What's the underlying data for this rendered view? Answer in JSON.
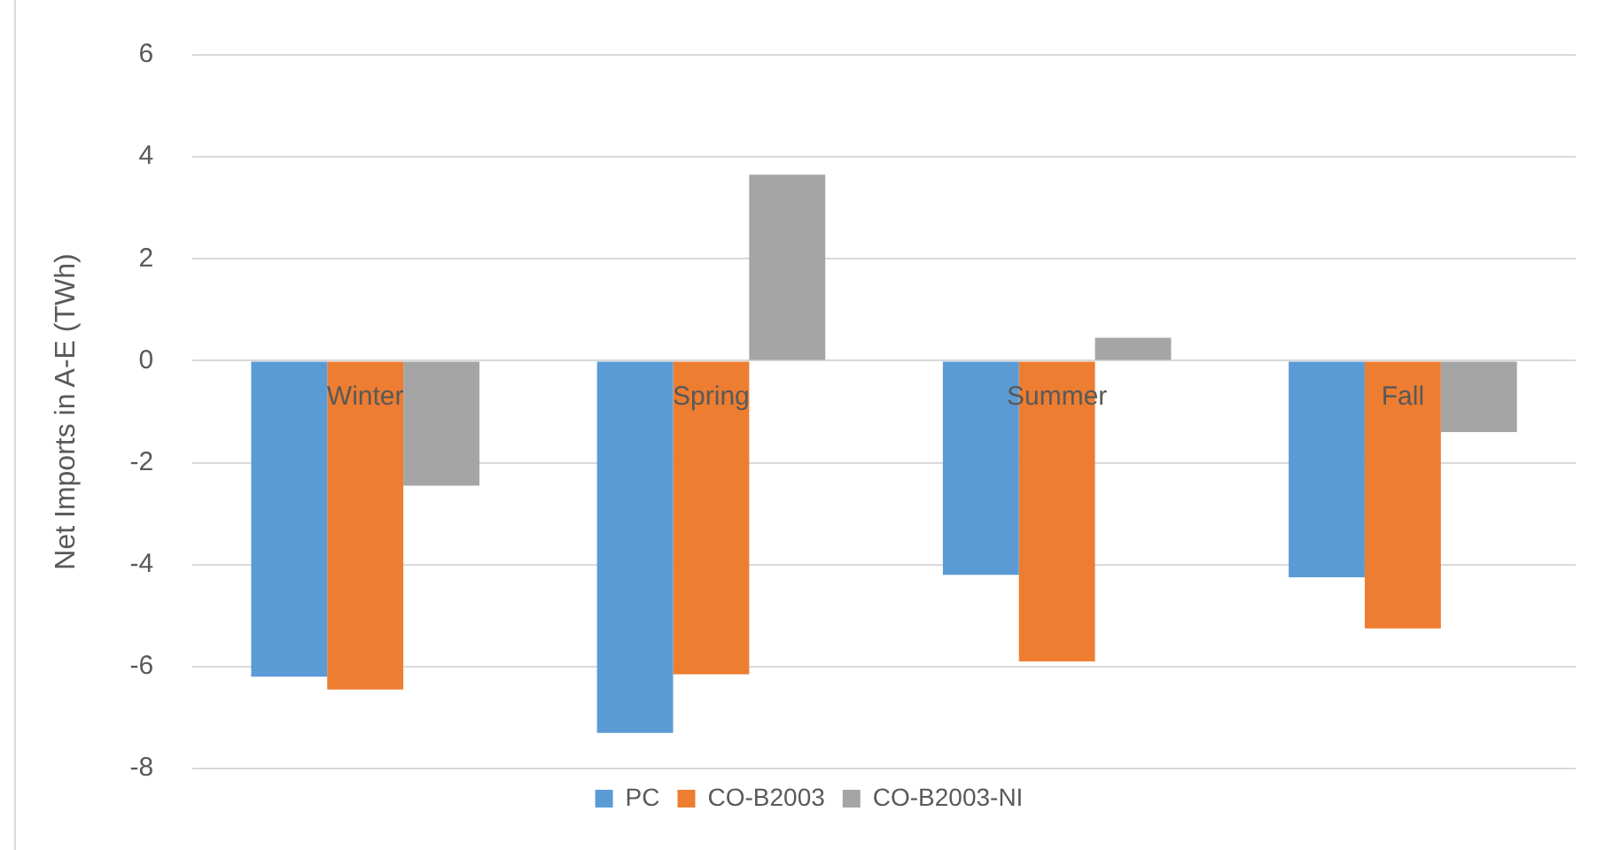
{
  "chart_data": {
    "type": "bar",
    "ylabel": "Net Imports in A-E (TWh)",
    "categories": [
      "Winter",
      "Spring",
      "Summer",
      "Fall"
    ],
    "series": [
      {
        "name": "PC",
        "color": "#5b9bd5",
        "values": [
          -6.2,
          -7.3,
          -4.2,
          -4.25
        ]
      },
      {
        "name": "CO-B2003",
        "color": "#ed7d31",
        "values": [
          -6.45,
          -6.15,
          -5.9,
          -5.25
        ]
      },
      {
        "name": "CO-B2003-NI",
        "color": "#a5a5a5",
        "values": [
          -2.45,
          3.65,
          0.45,
          -1.4
        ]
      }
    ],
    "ylim": [
      -8,
      6
    ],
    "yticks": [
      -8,
      -6,
      -4,
      -2,
      0,
      2,
      4,
      6
    ],
    "grid": "y",
    "legend": "bottom"
  }
}
